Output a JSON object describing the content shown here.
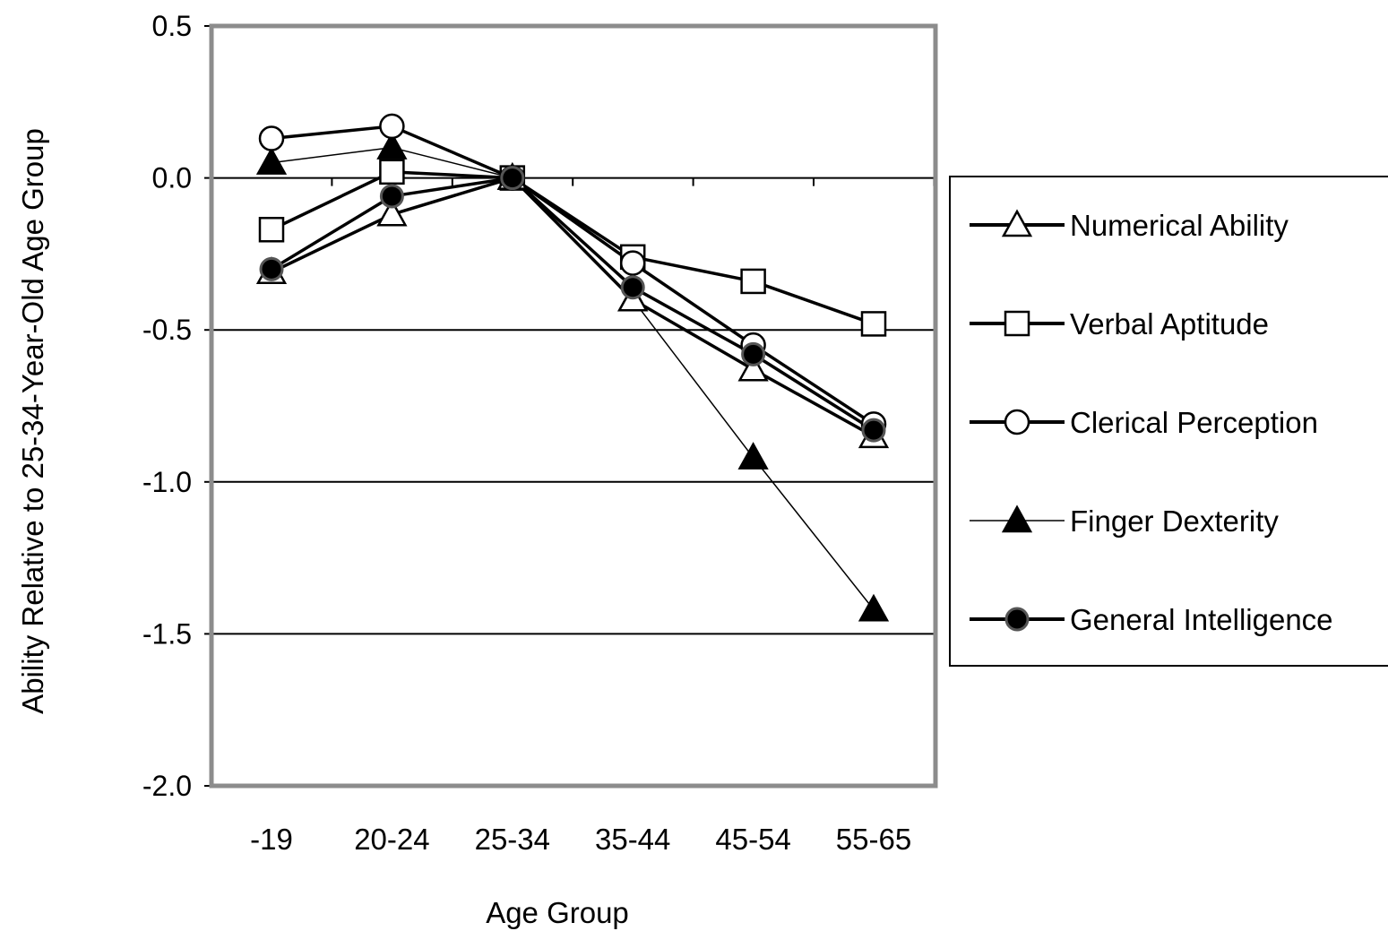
{
  "chart_data": {
    "type": "line",
    "title": "",
    "xlabel": "Age Group",
    "ylabel": "Ability Relative to 25-34-Year-Old Age Group",
    "categories": [
      "-19",
      "20-24",
      "25-34",
      "35-44",
      "45-54",
      "55-65"
    ],
    "ylim": [
      -2.0,
      0.5
    ],
    "yticks": [
      0.5,
      0.0,
      -0.5,
      -1.0,
      -1.5,
      -2.0
    ],
    "ytick_labels": [
      "0.5",
      "0.0",
      "-0.5",
      "-1.0",
      "-1.5",
      "-2.0"
    ],
    "grid": "horizontal at -1.5, -1.0, -0.5, 0.0",
    "legend_position": "right",
    "series": [
      {
        "name": "Numerical Ability",
        "marker": "triangle-open",
        "line": "thick",
        "values": [
          -0.31,
          -0.12,
          0.0,
          -0.4,
          -0.63,
          -0.85
        ]
      },
      {
        "name": "Verbal Aptitude",
        "marker": "square-open",
        "line": "thick",
        "values": [
          -0.17,
          0.02,
          0.0,
          -0.26,
          -0.34,
          -0.48
        ]
      },
      {
        "name": "Clerical Perception",
        "marker": "circle-open",
        "line": "thick",
        "values": [
          0.13,
          0.17,
          0.0,
          -0.28,
          -0.55,
          -0.81
        ]
      },
      {
        "name": "Finger Dexterity",
        "marker": "triangle-filled",
        "line": "thin",
        "values": [
          0.05,
          0.1,
          0.0,
          -0.4,
          -0.92,
          -1.42
        ]
      },
      {
        "name": "General Intelligence",
        "marker": "circle-filled",
        "line": "thick",
        "values": [
          -0.3,
          -0.06,
          0.0,
          -0.36,
          -0.58,
          -0.83
        ]
      }
    ]
  }
}
